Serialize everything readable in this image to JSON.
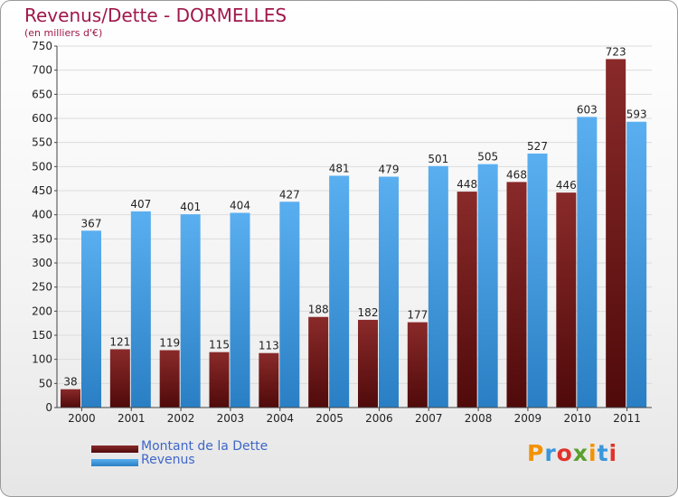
{
  "title": "Revenus/Dette - DORMELLES",
  "subtitle": "(en milliers d'€)",
  "colors": {
    "dette": "#6e1414",
    "revenus": "#3a96dc",
    "title": "#a0184a",
    "legend_text": "#3f67c8"
  },
  "legend": [
    {
      "label": "Montant de la Dette"
    },
    {
      "label": "Revenus"
    }
  ],
  "logo": {
    "text": "Proxiti",
    "letters": [
      "P",
      "r",
      "o",
      "x",
      "i",
      "t",
      "i"
    ],
    "colors": [
      "#f39200",
      "#3a96dc",
      "#e0332b",
      "#5aa02c",
      "#f39200",
      "#3a96dc",
      "#e0332b"
    ]
  },
  "chart_data": {
    "type": "bar",
    "title": "Revenus/Dette - DORMELLES",
    "subtitle": "(en milliers d'€)",
    "xlabel": "",
    "ylabel": "",
    "ylim": [
      0,
      750
    ],
    "yticks": [
      0,
      50,
      100,
      150,
      200,
      250,
      300,
      350,
      400,
      450,
      500,
      550,
      600,
      650,
      700,
      750
    ],
    "grid": true,
    "legend_position": "bottom-left",
    "categories": [
      "2000",
      "2001",
      "2002",
      "2003",
      "2004",
      "2005",
      "2006",
      "2007",
      "2008",
      "2009",
      "2010",
      "2011"
    ],
    "series": [
      {
        "name": "Montant de la Dette",
        "values": [
          38,
          121,
          119,
          115,
          113,
          188,
          182,
          177,
          448,
          468,
          446,
          723
        ]
      },
      {
        "name": "Revenus",
        "values": [
          367,
          407,
          401,
          404,
          427,
          481,
          479,
          501,
          505,
          527,
          603,
          593
        ]
      }
    ]
  }
}
